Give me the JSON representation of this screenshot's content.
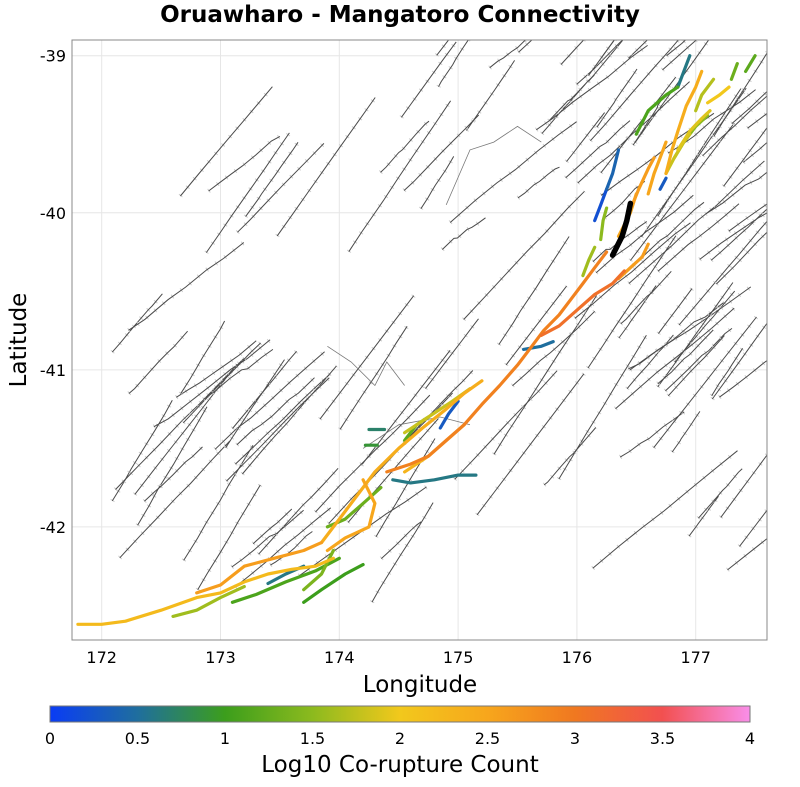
{
  "title": "Oruawharo - Mangatoro Connectivity",
  "x_axis": {
    "label": "Longitude",
    "range": [
      171.75,
      177.6
    ],
    "ticks": [
      "172",
      "173",
      "174",
      "175",
      "176",
      "177"
    ],
    "tick_values": [
      172,
      173,
      174,
      175,
      176,
      177
    ]
  },
  "y_axis": {
    "label": "Latitude",
    "range": [
      -42.72,
      -38.9
    ],
    "ticks": [
      "-39",
      "-40",
      "-41",
      "-42"
    ],
    "tick_values": [
      -39,
      -40,
      -41,
      -42
    ]
  },
  "colorbar": {
    "label": "Log10 Co-rupture Count",
    "range": [
      0,
      4
    ],
    "ticks": [
      "0",
      "0.5",
      "1",
      "1.5",
      "2",
      "2.5",
      "3",
      "3.5",
      "4"
    ],
    "tick_values": [
      0,
      0.5,
      1,
      1.5,
      2,
      2.5,
      3,
      3.5,
      4
    ],
    "stops": [
      {
        "v": 0,
        "color": "#0a3cf5"
      },
      {
        "v": 0.5,
        "color": "#1f6e9e"
      },
      {
        "v": 1,
        "color": "#3c9e1c"
      },
      {
        "v": 1.5,
        "color": "#8cba1e"
      },
      {
        "v": 2,
        "color": "#f2c81c"
      },
      {
        "v": 2.5,
        "color": "#f7a61c"
      },
      {
        "v": 3,
        "color": "#f07820"
      },
      {
        "v": 3.5,
        "color": "#f25050"
      },
      {
        "v": 4,
        "color": "#f98ee9"
      }
    ]
  },
  "parent_fault_color": "#000000",
  "chart_data": {
    "type": "map",
    "title": "Oruawharo - Mangatoro Connectivity",
    "xlabel": "Longitude",
    "ylabel": "Latitude",
    "xlim": [
      171.75,
      177.6
    ],
    "ylim": [
      -42.72,
      -38.9
    ],
    "colorbar_label": "Log10 Co-rupture Count",
    "colored_faults": [
      {
        "name": "parent",
        "parent": true,
        "points": [
          [
            176.3,
            -40.27
          ],
          [
            176.38,
            -40.15
          ],
          [
            176.42,
            -40.05
          ],
          [
            176.45,
            -39.94
          ]
        ]
      },
      {
        "value": 2.9,
        "points": [
          [
            174.4,
            -41.65
          ],
          [
            174.6,
            -41.6
          ],
          [
            174.75,
            -41.55
          ],
          [
            174.9,
            -41.45
          ],
          [
            175.05,
            -41.35
          ],
          [
            175.2,
            -41.22
          ],
          [
            175.35,
            -41.1
          ],
          [
            175.5,
            -40.97
          ],
          [
            175.62,
            -40.85
          ],
          [
            175.72,
            -40.75
          ],
          [
            175.85,
            -40.65
          ],
          [
            175.95,
            -40.55
          ],
          [
            176.05,
            -40.45
          ],
          [
            176.15,
            -40.35
          ],
          [
            176.25,
            -40.25
          ]
        ]
      },
      {
        "value": 3.1,
        "points": [
          [
            175.7,
            -40.78
          ],
          [
            175.85,
            -40.72
          ],
          [
            176.0,
            -40.62
          ],
          [
            176.15,
            -40.52
          ],
          [
            176.3,
            -40.45
          ],
          [
            176.4,
            -40.37
          ]
        ]
      },
      {
        "value": 2.5,
        "points": [
          [
            174.2,
            -41.7
          ],
          [
            174.3,
            -41.85
          ],
          [
            174.25,
            -42.0
          ],
          [
            174.05,
            -42.07
          ],
          [
            173.9,
            -42.15
          ]
        ]
      },
      {
        "value": 2.2,
        "points": [
          [
            171.8,
            -42.62
          ],
          [
            172.0,
            -42.62
          ],
          [
            172.2,
            -42.6
          ],
          [
            172.5,
            -42.53
          ],
          [
            172.8,
            -42.45
          ],
          [
            173.0,
            -42.42
          ],
          [
            173.2,
            -42.35
          ],
          [
            173.4,
            -42.3
          ],
          [
            173.6,
            -42.27
          ],
          [
            173.8,
            -42.25
          ],
          [
            173.95,
            -42.2
          ]
        ]
      },
      {
        "value": 2.4,
        "points": [
          [
            173.85,
            -42.1
          ],
          [
            174.0,
            -41.95
          ],
          [
            174.15,
            -41.8
          ],
          [
            174.3,
            -41.65
          ],
          [
            174.5,
            -41.5
          ],
          [
            174.7,
            -41.37
          ],
          [
            174.9,
            -41.25
          ],
          [
            175.05,
            -41.15
          ],
          [
            175.2,
            -41.07
          ]
        ]
      },
      {
        "value": 2.6,
        "points": [
          [
            172.8,
            -42.42
          ],
          [
            173.0,
            -42.37
          ],
          [
            173.2,
            -42.25
          ],
          [
            173.45,
            -42.2
          ],
          [
            173.7,
            -42.15
          ],
          [
            173.85,
            -42.1
          ]
        ]
      },
      {
        "value": 2.3,
        "points": [
          [
            174.55,
            -41.65
          ],
          [
            174.75,
            -41.55
          ],
          [
            174.9,
            -41.45
          ],
          [
            175.05,
            -41.35
          ]
        ]
      },
      {
        "value": 1.8,
        "points": [
          [
            174.55,
            -41.4
          ],
          [
            174.75,
            -41.3
          ],
          [
            174.95,
            -41.2
          ],
          [
            175.1,
            -41.12
          ]
        ]
      },
      {
        "value": 0.6,
        "points": [
          [
            174.45,
            -41.7
          ],
          [
            174.6,
            -41.72
          ],
          [
            174.8,
            -41.7
          ],
          [
            175.0,
            -41.67
          ],
          [
            175.15,
            -41.67
          ]
        ]
      },
      {
        "value": 0.3,
        "points": [
          [
            174.85,
            -41.37
          ],
          [
            174.92,
            -41.28
          ],
          [
            175.0,
            -41.2
          ]
        ]
      },
      {
        "value": 1.3,
        "points": [
          [
            173.9,
            -42.0
          ],
          [
            174.05,
            -41.95
          ],
          [
            174.2,
            -41.85
          ],
          [
            174.35,
            -41.75
          ]
        ]
      },
      {
        "value": 1.4,
        "points": [
          [
            173.95,
            -42.15
          ],
          [
            173.85,
            -42.3
          ],
          [
            173.7,
            -42.4
          ]
        ]
      },
      {
        "value": 1.1,
        "points": [
          [
            173.1,
            -42.48
          ],
          [
            173.3,
            -42.43
          ],
          [
            173.55,
            -42.35
          ],
          [
            173.8,
            -42.28
          ],
          [
            174.0,
            -42.2
          ]
        ]
      },
      {
        "value": 1.6,
        "points": [
          [
            172.6,
            -42.57
          ],
          [
            172.8,
            -42.53
          ],
          [
            173.0,
            -42.45
          ],
          [
            173.2,
            -42.38
          ]
        ]
      },
      {
        "value": 1.0,
        "points": [
          [
            173.7,
            -42.48
          ],
          [
            173.85,
            -42.4
          ],
          [
            174.05,
            -42.3
          ],
          [
            174.2,
            -42.24
          ]
        ]
      },
      {
        "value": 0.6,
        "points": [
          [
            173.4,
            -42.36
          ],
          [
            173.55,
            -42.3
          ],
          [
            173.7,
            -42.25
          ]
        ]
      },
      {
        "value": 0.7,
        "points": [
          [
            174.25,
            -41.38
          ],
          [
            174.38,
            -41.38
          ]
        ]
      },
      {
        "value": 0.9,
        "points": [
          [
            174.22,
            -41.48
          ],
          [
            174.32,
            -41.48
          ]
        ]
      },
      {
        "value": 1.2,
        "points": [
          [
            174.55,
            -41.45
          ],
          [
            174.65,
            -41.35
          ],
          [
            174.75,
            -41.3
          ]
        ]
      },
      {
        "value": 0.5,
        "points": [
          [
            175.55,
            -40.87
          ],
          [
            175.7,
            -40.85
          ],
          [
            175.8,
            -40.82
          ]
        ]
      },
      {
        "value": 2.6,
        "points": [
          [
            176.35,
            -40.42
          ],
          [
            176.45,
            -40.35
          ],
          [
            176.55,
            -40.28
          ],
          [
            176.6,
            -40.2
          ]
        ]
      },
      {
        "value": 2.5,
        "points": [
          [
            176.35,
            -40.15
          ],
          [
            176.45,
            -40.0
          ],
          [
            176.5,
            -39.88
          ]
        ]
      },
      {
        "value": 2.6,
        "points": [
          [
            176.45,
            -39.98
          ],
          [
            176.52,
            -39.85
          ],
          [
            176.6,
            -39.72
          ],
          [
            176.65,
            -39.65
          ]
        ]
      },
      {
        "value": 2.5,
        "points": [
          [
            176.6,
            -39.88
          ],
          [
            176.65,
            -39.75
          ],
          [
            176.7,
            -39.65
          ],
          [
            176.75,
            -39.55
          ]
        ]
      },
      {
        "value": 2.4,
        "points": [
          [
            176.75,
            -39.75
          ],
          [
            176.8,
            -39.6
          ],
          [
            176.85,
            -39.48
          ],
          [
            176.92,
            -39.32
          ],
          [
            177.0,
            -39.2
          ],
          [
            177.05,
            -39.1
          ]
        ]
      },
      {
        "value": 1.8,
        "points": [
          [
            176.75,
            -39.75
          ],
          [
            176.82,
            -39.65
          ],
          [
            176.9,
            -39.55
          ],
          [
            176.95,
            -39.5
          ]
        ]
      },
      {
        "value": 1.9,
        "points": [
          [
            176.85,
            -39.6
          ],
          [
            176.95,
            -39.48
          ],
          [
            177.05,
            -39.4
          ],
          [
            177.12,
            -39.35
          ]
        ]
      },
      {
        "value": 2.0,
        "points": [
          [
            177.1,
            -39.3
          ],
          [
            177.2,
            -39.25
          ],
          [
            177.28,
            -39.2
          ]
        ]
      },
      {
        "value": 1.5,
        "points": [
          [
            176.82,
            -39.65
          ],
          [
            176.9,
            -39.55
          ],
          [
            177.0,
            -39.45
          ],
          [
            177.1,
            -39.38
          ]
        ]
      },
      {
        "value": 1.1,
        "points": [
          [
            176.5,
            -39.5
          ],
          [
            176.6,
            -39.35
          ],
          [
            176.75,
            -39.25
          ],
          [
            176.85,
            -39.2
          ]
        ]
      },
      {
        "value": 0.6,
        "points": [
          [
            176.85,
            -39.2
          ],
          [
            176.9,
            -39.1
          ],
          [
            176.95,
            -39.0
          ]
        ]
      },
      {
        "value": 1.7,
        "points": [
          [
            177.0,
            -39.35
          ],
          [
            177.05,
            -39.25
          ],
          [
            177.15,
            -39.15
          ]
        ]
      },
      {
        "value": 1.3,
        "points": [
          [
            177.3,
            -39.15
          ],
          [
            177.35,
            -39.05
          ]
        ]
      },
      {
        "value": 1.2,
        "points": [
          [
            177.42,
            -39.1
          ],
          [
            177.5,
            -39.0
          ]
        ]
      },
      {
        "value": 0.4,
        "points": [
          [
            176.25,
            -39.85
          ],
          [
            176.3,
            -39.75
          ],
          [
            176.35,
            -39.6
          ]
        ]
      },
      {
        "value": 0.2,
        "points": [
          [
            176.15,
            -40.05
          ],
          [
            176.2,
            -39.95
          ],
          [
            176.25,
            -39.85
          ]
        ]
      },
      {
        "value": 0.3,
        "points": [
          [
            176.7,
            -39.85
          ],
          [
            176.75,
            -39.78
          ]
        ]
      },
      {
        "value": 1.5,
        "points": [
          [
            176.2,
            -40.17
          ],
          [
            176.22,
            -40.05
          ],
          [
            176.25,
            -39.97
          ]
        ]
      },
      {
        "value": 1.6,
        "points": [
          [
            176.05,
            -40.4
          ],
          [
            176.1,
            -40.3
          ],
          [
            176.15,
            -40.22
          ]
        ]
      }
    ]
  }
}
